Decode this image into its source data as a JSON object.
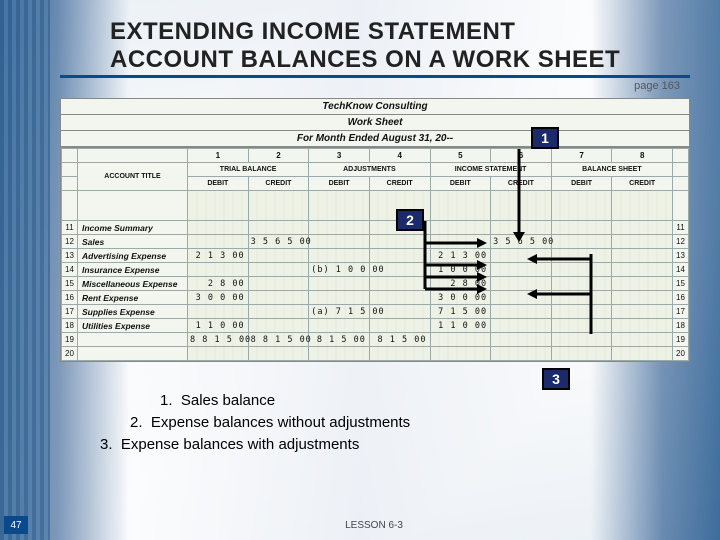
{
  "title_line1": "EXTENDING INCOME STATEMENT",
  "title_line2": "ACCOUNT BALANCES ON A WORK SHEET",
  "page_ref": "page 163",
  "sheet": {
    "company": "TechKnow Consulting",
    "label": "Work Sheet",
    "period": "For Month Ended August 31, 20--",
    "colnums": [
      "1",
      "2",
      "3",
      "4",
      "5",
      "6",
      "7",
      "8"
    ],
    "acct_title_hdr": "ACCOUNT TITLE",
    "groups": [
      "TRIAL BALANCE",
      "ADJUSTMENTS",
      "INCOME STATEMENT",
      "BALANCE SHEET"
    ],
    "sub": [
      "DEBIT",
      "CREDIT",
      "DEBIT",
      "CREDIT",
      "DEBIT",
      "CREDIT",
      "DEBIT",
      "CREDIT"
    ],
    "rows": [
      {
        "n": "11",
        "acct": "Income Summary",
        "tb_d": "",
        "tb_c": "",
        "adj_d": "",
        "adj_c": "",
        "is_d": "",
        "is_c": "",
        "bs_d": "",
        "bs_c": ""
      },
      {
        "n": "12",
        "acct": "Sales",
        "tb_d": "",
        "tb_c": "3 5 6 5 00",
        "adj_d": "",
        "adj_c": "",
        "is_d": "",
        "is_c": "3 5 6 5 00",
        "bs_d": "",
        "bs_c": ""
      },
      {
        "n": "13",
        "acct": "Advertising Expense",
        "tb_d": "2 1 3 00",
        "tb_c": "",
        "adj_d": "",
        "adj_c": "",
        "is_d": "2 1 3 00",
        "is_c": "",
        "bs_d": "",
        "bs_c": ""
      },
      {
        "n": "14",
        "acct": "Insurance Expense",
        "tb_d": "",
        "tb_c": "",
        "adj_d": "(b) 1 0 0 00",
        "adj_c": "",
        "is_d": "1 0 0 00",
        "is_c": "",
        "bs_d": "",
        "bs_c": ""
      },
      {
        "n": "15",
        "acct": "Miscellaneous Expense",
        "tb_d": "2 8 00",
        "tb_c": "",
        "adj_d": "",
        "adj_c": "",
        "is_d": "2 8 00",
        "is_c": "",
        "bs_d": "",
        "bs_c": ""
      },
      {
        "n": "16",
        "acct": "Rent Expense",
        "tb_d": "3 0 0 00",
        "tb_c": "",
        "adj_d": "",
        "adj_c": "",
        "is_d": "3 0 0 00",
        "is_c": "",
        "bs_d": "",
        "bs_c": ""
      },
      {
        "n": "17",
        "acct": "Supplies Expense",
        "tb_d": "",
        "tb_c": "",
        "adj_d": "(a) 7 1 5 00",
        "adj_c": "",
        "is_d": "7 1 5 00",
        "is_c": "",
        "bs_d": "",
        "bs_c": ""
      },
      {
        "n": "18",
        "acct": "Utilities Expense",
        "tb_d": "1 1 0 00",
        "tb_c": "",
        "adj_d": "",
        "adj_c": "",
        "is_d": "1 1 0 00",
        "is_c": "",
        "bs_d": "",
        "bs_c": ""
      },
      {
        "n": "19",
        "acct": "",
        "tb_d": "8 8 1 5 00",
        "tb_c": "8 8 1 5 00",
        "adj_d": "8 1 5 00",
        "adj_c": "8 1 5 00",
        "is_d": "",
        "is_c": "",
        "bs_d": "",
        "bs_c": ""
      },
      {
        "n": "20",
        "acct": "",
        "tb_d": "",
        "tb_c": "",
        "adj_d": "",
        "adj_c": "",
        "is_d": "",
        "is_c": "",
        "bs_d": "",
        "bs_c": ""
      }
    ]
  },
  "badges": {
    "b1": "1",
    "b2": "2",
    "b3": "3"
  },
  "notes": {
    "n1": "1.  Sales balance",
    "n2": "2.  Expense balances without adjustments",
    "n3": "3.  Expense balances with adjustments"
  },
  "footer": {
    "slide": "47",
    "lesson": "LESSON  6-3"
  },
  "colors": {
    "badge_bg": "#1a2a6a",
    "accent": "#0a4a8a"
  }
}
